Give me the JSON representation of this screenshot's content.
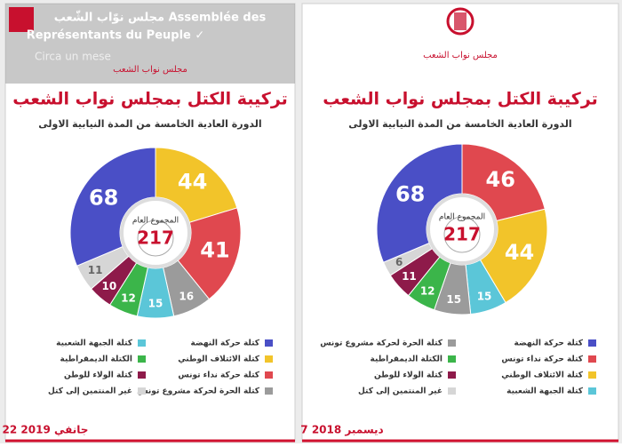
{
  "overlay": {
    "page_name": "مجلس نوّاب الشّعب Assemblée des",
    "page_name_2": "Représentants du Peuple ✓",
    "time": "Circa un mese"
  },
  "chart_data": [
    {
      "type": "pie",
      "logo_text": "مجلس نواب الشعب",
      "title": "تركيبة الكتل بمجلس نواب الشعب",
      "subtitle": "الدورة العادية الخامسة من المدة النيابية الاولى",
      "center_label": "المجموع العام",
      "total": "217",
      "date": "22 جانفي 2019",
      "categories": [
        "كتلة الائتلاف الوطني",
        "كتلة حركة نداء تونس",
        "كتلة الحرة لحركة مشروع تونس",
        "كتلة الجبهة الشعبية",
        "الكتلة الديمقراطية",
        "كتلة الولاء للوطن",
        "غير المنتمين إلى كتل",
        "كتلة حركة النهضة"
      ],
      "values": [
        44,
        41,
        16,
        15,
        12,
        10,
        11,
        68
      ],
      "colors": [
        "#f2c42a",
        "#e0484f",
        "#9b9b9b",
        "#5bc6d8",
        "#3bb54a",
        "#8e1a4a",
        "#d6d6d6",
        "#4a4fc6"
      ]
    },
    {
      "type": "pie",
      "logo_text": "مجلس نواب الشعب",
      "title": "تركيبة الكتل بمجلس نواب الشعب",
      "subtitle": "الدورة العادية الخامسة من المدة النيابية الاولى",
      "center_label": "المجموع العام",
      "total": "217",
      "date": "7 ديسمبر 2018",
      "categories": [
        "كتلة حركة نداء تونس",
        "كتلة الائتلاف الوطني",
        "كتلة الجبهة الشعبية",
        "كتلة الحرة لحركة مشروع تونس",
        "الكتلة الديمقراطية",
        "كتلة الولاء للوطن",
        "غير المنتمين إلى كتل",
        "كتلة حركة النهضة"
      ],
      "values": [
        46,
        44,
        15,
        15,
        12,
        11,
        6,
        68
      ],
      "colors": [
        "#e0484f",
        "#f2c42a",
        "#5bc6d8",
        "#9b9b9b",
        "#3bb54a",
        "#8e1a4a",
        "#d6d6d6",
        "#4a4fc6"
      ]
    }
  ]
}
